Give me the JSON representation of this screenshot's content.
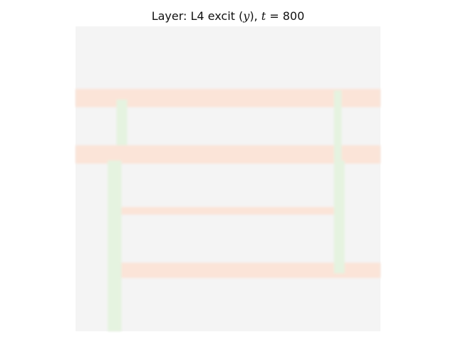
{
  "title": {
    "prefix": "Layer: L4 excit (",
    "var": "y",
    "mid": "), ",
    "time_var": "t",
    "eq": " = ",
    "time_value": "800"
  },
  "chart_data": {
    "type": "heatmap",
    "title": "Layer: L4 excit (y), t = 800",
    "background_color": "#f4f4f4",
    "colors": {
      "horizontal": "#fbe4d8",
      "vertical": "#e5f3e0"
    },
    "horizontal_streaks": [
      {
        "row": 0.235,
        "col_start": 0.0,
        "col_end": 1.0,
        "thickness": 0.06
      },
      {
        "row": 0.42,
        "col_start": 0.0,
        "col_end": 1.0,
        "thickness": 0.06
      },
      {
        "row": 0.605,
        "col_start": 0.13,
        "col_end": 0.875,
        "thickness": 0.025
      },
      {
        "row": 0.8,
        "col_start": 0.125,
        "col_end": 1.0,
        "thickness": 0.05
      }
    ],
    "vertical_streaks": [
      {
        "col": 0.152,
        "row_start": 0.24,
        "row_end": 0.39,
        "thickness": 0.035
      },
      {
        "col": 0.128,
        "row_start": 0.44,
        "row_end": 1.0,
        "thickness": 0.045
      },
      {
        "col": 0.86,
        "row_start": 0.21,
        "row_end": 0.44,
        "thickness": 0.025
      },
      {
        "col": 0.865,
        "row_start": 0.44,
        "row_end": 0.81,
        "thickness": 0.035
      }
    ],
    "axes_visible": false,
    "grid": false
  }
}
